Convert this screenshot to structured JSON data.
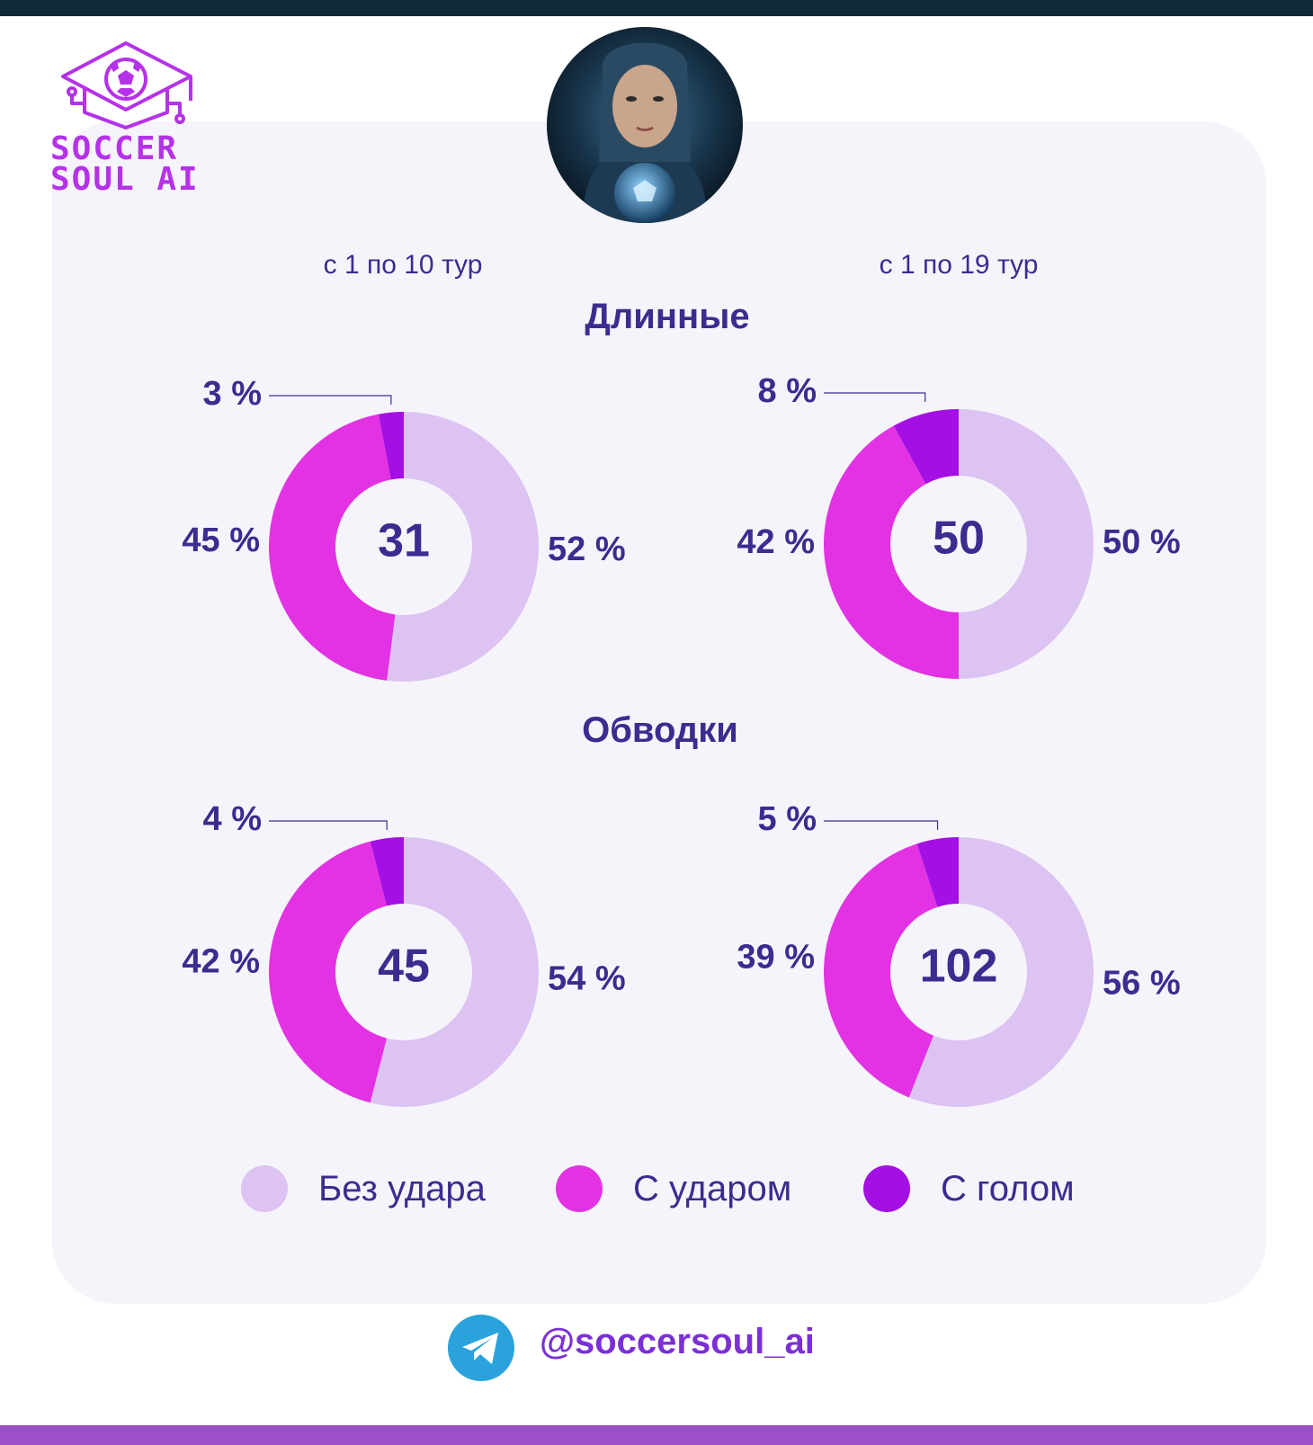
{
  "brand": {
    "line1": "SOCCER",
    "line2": "SOUL AI"
  },
  "periods": [
    "с 1 по 10 тур",
    "с 1 по 19 тур"
  ],
  "sections": [
    "Длинные",
    "Обводки"
  ],
  "colors": {
    "no_shot": "#dcc3f2",
    "with_shot": "#e232e3",
    "with_goal": "#a40fe3"
  },
  "legend": [
    "Без удара",
    "С ударом",
    "С голом"
  ],
  "footer": {
    "handle": "@soccersoul_ai"
  },
  "chart_data": [
    {
      "type": "pie",
      "section": "Длинные",
      "period": "с 1 по 10 тур",
      "total": "31",
      "categories": [
        "Без удара",
        "С ударом",
        "С голом"
      ],
      "values": [
        52,
        45,
        3
      ],
      "labels": [
        "52 %",
        "45 %",
        "3 %"
      ]
    },
    {
      "type": "pie",
      "section": "Длинные",
      "period": "с 1 по 19 тур",
      "total": "50",
      "categories": [
        "Без удара",
        "С ударом",
        "С голом"
      ],
      "values": [
        50,
        42,
        8
      ],
      "labels": [
        "50 %",
        "42 %",
        "8 %"
      ]
    },
    {
      "type": "pie",
      "section": "Обводки",
      "period": "с 1 по 10 тур",
      "total": "45",
      "categories": [
        "Без удара",
        "С ударом",
        "С голом"
      ],
      "values": [
        54,
        42,
        4
      ],
      "labels": [
        "54 %",
        "42 %",
        "4 %"
      ]
    },
    {
      "type": "pie",
      "section": "Обводки",
      "period": "с 1 по 19 тур",
      "total": "102",
      "categories": [
        "Без удара",
        "С ударом",
        "С голом"
      ],
      "values": [
        56,
        39,
        5
      ],
      "labels": [
        "56 %",
        "39 %",
        "5 %"
      ]
    }
  ]
}
